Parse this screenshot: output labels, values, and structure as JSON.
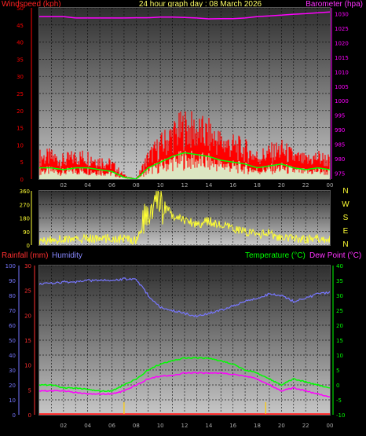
{
  "header": {
    "title": "24 hour graph day : 08 March 2026",
    "left_label": "Windspeed (kph)",
    "right_label": "Barometer (hpa)"
  },
  "colors": {
    "windspeed": "#ff0000",
    "gust_fill": "#ff1a1a",
    "wind_avg": "#00ff00",
    "wind_light": "#d8ffd8",
    "barometer": "#ff00ff",
    "direction": "#ffff33",
    "rainfall": "#ff3030",
    "humidity": "#7777ff",
    "temperature": "#00ff00",
    "dew_point": "#ff00ff",
    "rain_marker": "#ffcc00",
    "grid": "#000000",
    "axis_text": "#aaaaaa"
  },
  "chart_data": [
    {
      "type": "line",
      "name": "wind-barometer",
      "x_ticks": [
        "02",
        "04",
        "06",
        "08",
        "10",
        "12",
        "14",
        "16",
        "18",
        "20",
        "22",
        "00"
      ],
      "y_left": {
        "label": "Windspeed (kph)",
        "ticks": [
          0,
          5,
          10,
          15,
          20,
          25,
          30,
          35,
          40,
          45,
          50
        ],
        "range": [
          0,
          50
        ]
      },
      "y_right": {
        "label": "Barometer (hpa)",
        "ticks": [
          975,
          980,
          985,
          990,
          995,
          1000,
          1005,
          1010,
          1015,
          1020,
          1025,
          1030
        ],
        "range": [
          973,
          1032
        ]
      },
      "x": [
        0,
        1,
        2,
        3,
        4,
        5,
        6,
        7,
        8,
        9,
        10,
        11,
        12,
        13,
        14,
        15,
        16,
        17,
        18,
        19,
        20,
        21,
        22,
        23,
        24
      ],
      "series": [
        {
          "name": "Windspeed (kph)",
          "axis": "left",
          "values": [
            6,
            6,
            5,
            6,
            6,
            5,
            4,
            1,
            0,
            6,
            9,
            12,
            14,
            13,
            12,
            10,
            9,
            8,
            6,
            7,
            8,
            6,
            5,
            6,
            5
          ]
        },
        {
          "name": "Barometer (hpa)",
          "axis": "right",
          "values": [
            1029,
            1029,
            1029,
            1028.5,
            1028.5,
            1028.5,
            1028.5,
            1028.5,
            1028.6,
            1028.6,
            1028.8,
            1028.8,
            1028.7,
            1028.5,
            1028.2,
            1028.3,
            1028.3,
            1028.5,
            1029,
            1029.2,
            1029.5,
            1029.8,
            1030,
            1030.3,
            1030.6
          ]
        }
      ],
      "grid": true
    },
    {
      "type": "scatter",
      "name": "wind-direction",
      "y_ticks": [
        0,
        90,
        180,
        270,
        360
      ],
      "range": [
        0,
        360
      ],
      "compass_labels": [
        "N",
        "W",
        "S",
        "E",
        "N"
      ],
      "x": [
        0,
        1,
        2,
        3,
        4,
        5,
        6,
        7,
        8,
        9,
        10,
        11,
        12,
        13,
        14,
        15,
        16,
        17,
        18,
        19,
        20,
        21,
        22,
        23,
        24
      ],
      "series": [
        {
          "values": [
            20,
            35,
            40,
            35,
            45,
            40,
            45,
            40,
            35,
            200,
            300,
            190,
            170,
            140,
            160,
            130,
            110,
            90,
            70,
            80,
            40,
            45,
            40,
            45,
            40
          ]
        }
      ],
      "grid": true
    },
    {
      "type": "line",
      "name": "rain-humidity-temp",
      "x_ticks": [
        "02",
        "04",
        "06",
        "08",
        "10",
        "12",
        "14",
        "16",
        "18",
        "20",
        "22",
        "00"
      ],
      "left_labels": {
        "rainfall": "Rainfall (mm)",
        "humidity": "Humidity"
      },
      "right_labels": {
        "temperature": "Temperature (°C)",
        "dew_point": "Dew Point (°C)"
      },
      "y_humidity": {
        "ticks": [
          0,
          10,
          20,
          30,
          40,
          50,
          60,
          70,
          80,
          90,
          100
        ],
        "range": [
          0,
          100
        ]
      },
      "y_rain": {
        "ticks": [
          0,
          5,
          10,
          15,
          20,
          25,
          30
        ],
        "range": [
          0,
          30
        ]
      },
      "y_temp": {
        "ticks": [
          -10,
          -5,
          0,
          5,
          10,
          15,
          20,
          25,
          30,
          35,
          40
        ],
        "range": [
          -10,
          40
        ]
      },
      "x": [
        0,
        1,
        2,
        3,
        4,
        5,
        6,
        7,
        8,
        9,
        10,
        11,
        12,
        13,
        14,
        15,
        16,
        17,
        18,
        19,
        20,
        21,
        22,
        23,
        24
      ],
      "series": [
        {
          "name": "Humidity",
          "axis": "humidity",
          "values": [
            88,
            88,
            89,
            89,
            90,
            90,
            90,
            91,
            91,
            80,
            72,
            70,
            68,
            66,
            68,
            70,
            73,
            76,
            78,
            81,
            80,
            76,
            78,
            81,
            82
          ]
        },
        {
          "name": "Temperature (°C)",
          "axis": "temp",
          "values": [
            0,
            0,
            -1,
            -1,
            -1.5,
            -2,
            -2,
            0,
            2,
            5,
            7,
            8,
            9,
            9,
            9,
            8,
            7,
            5,
            4,
            2,
            0,
            2,
            1,
            0,
            -1
          ]
        },
        {
          "name": "Dew Point (°C)",
          "axis": "temp",
          "values": [
            -2,
            -2,
            -2,
            -2.5,
            -3,
            -3,
            -3,
            -2,
            0,
            2,
            3,
            3,
            4,
            4,
            4,
            4,
            3.5,
            3,
            2,
            0,
            -2,
            -1,
            -2,
            -3,
            -4
          ]
        },
        {
          "name": "Rainfall (mm)",
          "axis": "rain",
          "values": [
            0,
            0,
            0,
            0,
            0,
            0,
            0,
            0,
            0,
            0,
            0,
            0,
            0,
            0,
            0,
            0,
            0,
            0,
            0,
            0,
            0,
            0,
            0,
            0,
            0
          ]
        }
      ],
      "rain_events": [
        7,
        18.7
      ],
      "grid": true
    }
  ]
}
